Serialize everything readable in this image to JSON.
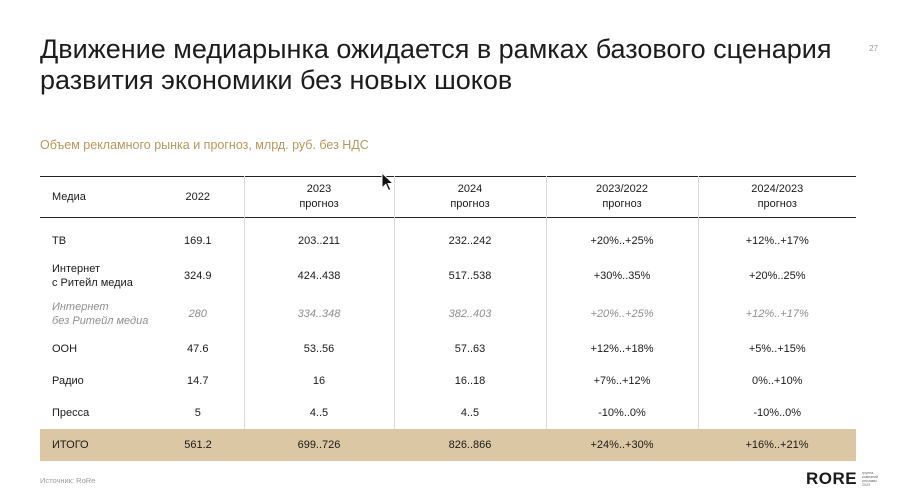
{
  "slide": {
    "title_line1": "Движение медиарынка ожидается в рамках базового сценария",
    "title_line2": "развития экономики без новых шоков",
    "page_number": "27",
    "subtitle": "Объем рекламного рынка и прогноз, млрд. руб. без НДС",
    "source": "Источник: RoRe"
  },
  "logo": {
    "text": "RORE",
    "tagline": [
      "группа",
      "компаний",
      "рекламы",
      "2023"
    ],
    "accent": "#c0965a"
  },
  "table": {
    "headers": [
      {
        "line1": "Медиа",
        "line2": ""
      },
      {
        "line1": "2022",
        "line2": ""
      },
      {
        "line1": "2023",
        "line2": "прогноз"
      },
      {
        "line1": "2024",
        "line2": "прогноз"
      },
      {
        "line1": "2023/2022",
        "line2": "прогноз"
      },
      {
        "line1": "2024/2023",
        "line2": "прогноз"
      }
    ],
    "rows": [
      {
        "media_l1": "ТВ",
        "media_l2": "",
        "v2022": "169.1",
        "v2023": "203..211",
        "v2024": "232..242",
        "g2023": "+20%..+25%",
        "g2024": "+12%..+17%"
      },
      {
        "media_l1": "Интернет",
        "media_l2": "с Ритейл медиа",
        "v2022": "324.9",
        "v2023": "424..438",
        "v2024": "517..538",
        "g2023": "+30%..35%",
        "g2024": "+20%..25%"
      },
      {
        "media_l1": "Интернет",
        "media_l2": "без Ритейл медиа",
        "v2022": "280",
        "v2023": "334..348",
        "v2024": "382..403",
        "g2023": "+20%..+25%",
        "g2024": "+12%..+17%"
      },
      {
        "media_l1": "ООН",
        "media_l2": "",
        "v2022": "47.6",
        "v2023": "53..56",
        "v2024": "57..63",
        "g2023": "+12%..+18%",
        "g2024": "+5%..+15%"
      },
      {
        "media_l1": "Радио",
        "media_l2": "",
        "v2022": "14.7",
        "v2023": "16",
        "v2024": "16..18",
        "g2023": "+7%..+12%",
        "g2024": "0%..+10%"
      },
      {
        "media_l1": "Пресса",
        "media_l2": "",
        "v2022": "5",
        "v2023": "4..5",
        "v2024": "4..5",
        "g2023": "-10%..0%",
        "g2024": "-10%..0%"
      }
    ],
    "total": {
      "label": "ИТОГО",
      "v2022": "561.2",
      "v2023": "699..726",
      "v2024": "826..866",
      "g2023": "+24%..+30%",
      "g2024": "+16%..+21%"
    },
    "total_bg": "#dcc7a4",
    "muted_color": "#8e8e8e"
  }
}
